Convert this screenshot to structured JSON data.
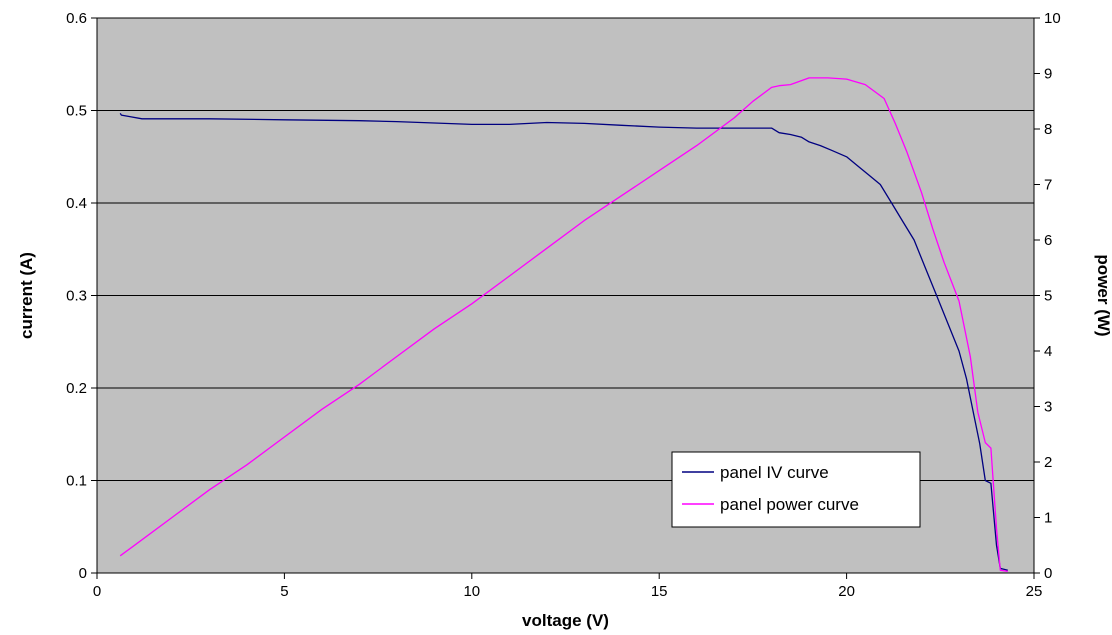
{
  "chart_data": {
    "type": "line",
    "title": "",
    "xlabel": "voltage (V)",
    "ylabel": "current (A)",
    "y2label": "power (W)",
    "xlim": [
      0,
      25
    ],
    "ylim": [
      0,
      0.6
    ],
    "y2lim": [
      0,
      10
    ],
    "xticks": [
      "0",
      "5",
      "10",
      "15",
      "20",
      "25"
    ],
    "yticks": [
      "0",
      "0.1",
      "0.2",
      "0.3",
      "0.4",
      "0.5",
      "0.6"
    ],
    "y2ticks": [
      "0",
      "1",
      "2",
      "3",
      "4",
      "5",
      "6",
      "7",
      "8",
      "9",
      "10"
    ],
    "grid": "horizontal",
    "legend": "bottom-right",
    "colors": {
      "plot_bg": "#c0c0c0",
      "iv": "#000080",
      "power": "#ff00ff"
    },
    "series": [
      {
        "name": "panel IV curve",
        "axis": "left",
        "color": "#000080",
        "x": [
          0.62,
          0.65,
          0.8,
          1.2,
          3,
          5,
          7,
          8,
          10,
          11,
          12,
          13,
          14,
          15,
          16,
          17,
          18,
          18.2,
          18.5,
          18.8,
          19,
          19.3,
          19.6,
          20,
          20.3,
          20.6,
          20.9,
          21.2,
          21.5,
          21.8,
          22.1,
          22.4,
          22.7,
          23,
          23.2,
          23.4,
          23.55,
          23.7,
          23.85,
          24,
          24.1,
          24.3
        ],
        "y": [
          0.497,
          0.495,
          0.494,
          0.491,
          0.491,
          0.49,
          0.489,
          0.488,
          0.485,
          0.485,
          0.487,
          0.486,
          0.484,
          0.482,
          0.481,
          0.481,
          0.481,
          0.476,
          0.474,
          0.471,
          0.466,
          0.462,
          0.457,
          0.45,
          0.44,
          0.43,
          0.42,
          0.4,
          0.38,
          0.36,
          0.33,
          0.3,
          0.27,
          0.24,
          0.21,
          0.17,
          0.14,
          0.1,
          0.097,
          0.03,
          0.005,
          0.003
        ]
      },
      {
        "name": "panel power curve",
        "axis": "right",
        "color": "#ff00ff",
        "x": [
          0.62,
          1,
          2,
          3,
          4,
          5,
          6,
          7,
          8,
          9,
          10,
          11,
          12,
          13,
          14,
          15,
          16,
          17,
          17.5,
          18,
          18.2,
          18.5,
          19,
          19.5,
          20,
          20.5,
          21,
          21.3,
          21.6,
          22,
          22.3,
          22.6,
          23,
          23.3,
          23.5,
          23.7,
          23.85,
          24,
          24.1,
          24.3
        ],
        "y": [
          0.31,
          0.5,
          1,
          1.5,
          1.95,
          2.45,
          2.95,
          3.4,
          3.9,
          4.4,
          4.85,
          5.35,
          5.85,
          6.35,
          6.8,
          7.25,
          7.7,
          8.2,
          8.5,
          8.75,
          8.78,
          8.8,
          8.92,
          8.92,
          8.9,
          8.8,
          8.55,
          8.1,
          7.6,
          6.85,
          6.2,
          5.6,
          4.9,
          3.9,
          2.9,
          2.35,
          2.25,
          0.8,
          0.05,
          0.03
        ]
      }
    ]
  }
}
